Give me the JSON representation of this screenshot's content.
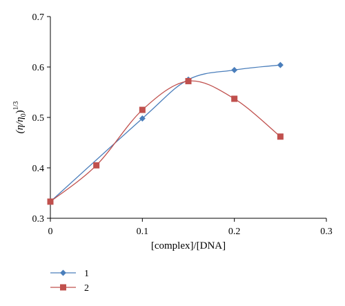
{
  "chart_data": {
    "type": "line",
    "title": "",
    "xlabel": "[complex]/[DNA]",
    "ylabel_main": "(η/η",
    "ylabel_sub": "0",
    "ylabel_end": ")",
    "ylabel_sup": "1/3",
    "xlim": [
      0,
      0.3
    ],
    "ylim": [
      0.3,
      0.7
    ],
    "xticks": [
      0,
      0.1,
      0.2,
      0.3
    ],
    "xtick_labels": [
      "0",
      "0.1",
      "0.2",
      "0.3"
    ],
    "yticks": [
      0.3,
      0.4,
      0.5,
      0.6,
      0.7
    ],
    "ytick_labels": [
      "0.3",
      "0.4",
      "0.5",
      "0.6",
      "0.7"
    ],
    "grid": false,
    "legend_position": "bottom-left",
    "series": [
      {
        "name": "1",
        "marker": "diamond",
        "color": "#4a7ebb",
        "x": [
          0,
          0.1,
          0.15,
          0.2,
          0.25
        ],
        "y": [
          0.333,
          0.498,
          0.575,
          0.594,
          0.604
        ]
      },
      {
        "name": "2",
        "marker": "square",
        "color": "#c0504d",
        "x": [
          0,
          0.05,
          0.1,
          0.15,
          0.2,
          0.25
        ],
        "y": [
          0.333,
          0.405,
          0.515,
          0.572,
          0.537,
          0.462
        ]
      }
    ]
  }
}
